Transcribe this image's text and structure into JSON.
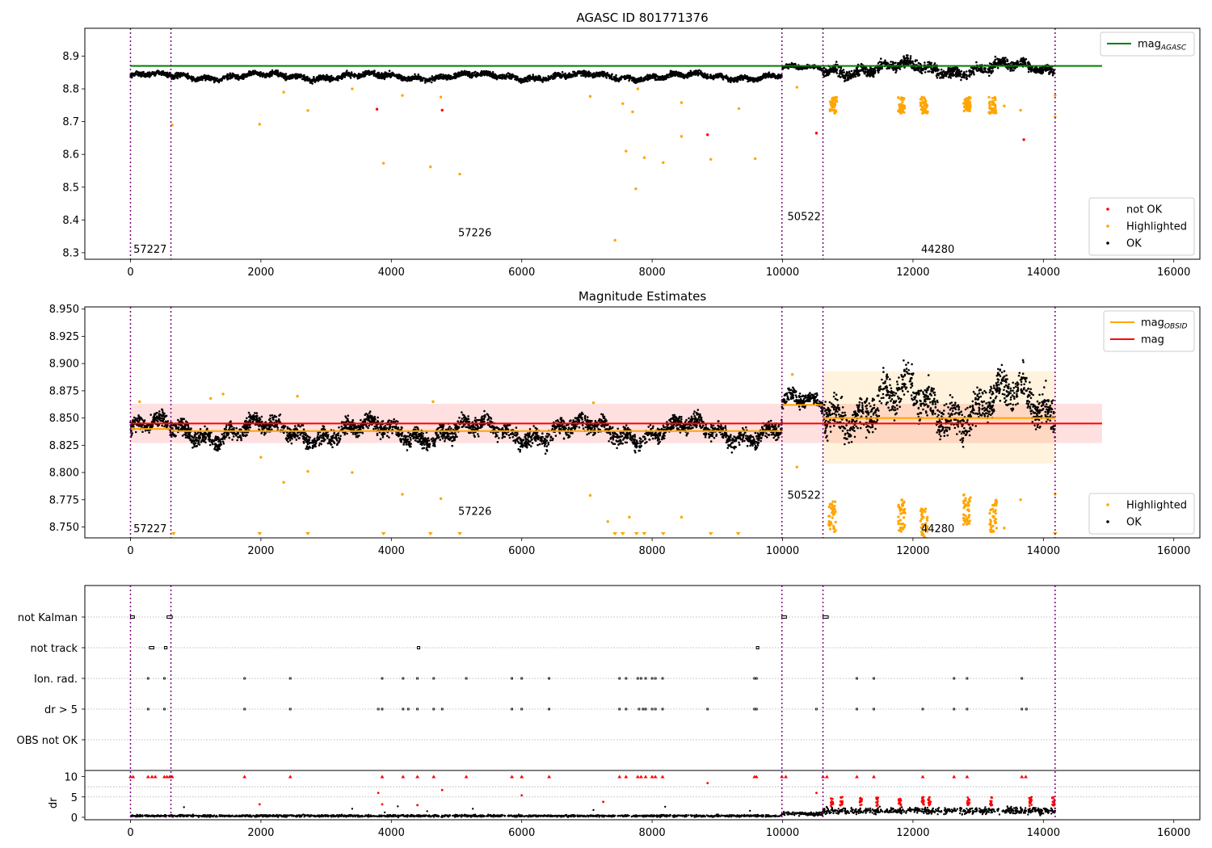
{
  "chart_data": [
    {
      "type": "scatter",
      "title": "AGASC ID 801771376",
      "xlabel": "",
      "ylabel": "",
      "xlim": [
        -700,
        16400
      ],
      "ylim": [
        8.28,
        8.985
      ],
      "xticks": [
        0,
        2000,
        4000,
        6000,
        8000,
        10000,
        12000,
        14000,
        16000
      ],
      "yticks": [
        8.3,
        8.4,
        8.5,
        8.6,
        8.7,
        8.8,
        8.9
      ],
      "ytick_decimals": 1,
      "grid": false,
      "obs_boundaries": [
        0,
        620,
        9990,
        10620,
        14180
      ],
      "obs_labels": [
        {
          "text": "57227",
          "x": 20,
          "y": 8.31
        },
        {
          "text": "57226",
          "x": 5000,
          "y": 8.36
        },
        {
          "text": "50522",
          "x": 10050,
          "y": 8.41
        },
        {
          "text": "44280",
          "x": 12100,
          "y": 8.31
        }
      ],
      "hlines": [
        {
          "name": "mag_AGASC",
          "y": 8.87,
          "x_range": [
            0,
            14900
          ],
          "color": "#008000"
        }
      ],
      "series": [
        {
          "name": "not OK",
          "color": "#ff0000",
          "values": [
            [
              3780,
              8.738
            ],
            [
              4780,
              8.735
            ],
            [
              8850,
              8.66
            ],
            [
              10520,
              8.665
            ],
            [
              13700,
              8.645
            ]
          ]
        },
        {
          "name": "Highlighted",
          "color": "#ffa500",
          "values": [
            [
              640,
              8.69
            ],
            [
              1980,
              8.692
            ],
            [
              2350,
              8.79
            ],
            [
              2720,
              8.734
            ],
            [
              3400,
              8.8
            ],
            [
              3880,
              8.573
            ],
            [
              4170,
              8.78
            ],
            [
              4600,
              8.562
            ],
            [
              4760,
              8.775
            ],
            [
              5050,
              8.54
            ],
            [
              7050,
              8.777
            ],
            [
              7430,
              8.338
            ],
            [
              7550,
              8.755
            ],
            [
              7600,
              8.61
            ],
            [
              7750,
              8.495
            ],
            [
              7880,
              8.59
            ],
            [
              8170,
              8.575
            ],
            [
              8450,
              8.655
            ],
            [
              8450,
              8.758
            ],
            [
              8900,
              8.585
            ],
            [
              9330,
              8.74
            ],
            [
              9580,
              8.587
            ],
            [
              7700,
              8.73
            ],
            [
              7780,
              8.8
            ],
            [
              10220,
              8.805
            ],
            [
              13400,
              8.748
            ],
            [
              13650,
              8.735
            ],
            [
              14180,
              8.78
            ],
            [
              14180,
              8.715
            ]
          ]
        }
      ],
      "ok_segments": [
        {
          "x": [
            0,
            620
          ],
          "mean": 8.84,
          "spread": 0.02
        },
        {
          "x": [
            620,
            9990
          ],
          "mean": 8.838,
          "spread": 0.022
        },
        {
          "x": [
            9990,
            10620
          ],
          "mean": 8.862,
          "spread": 0.018
        },
        {
          "x": [
            10620,
            14180
          ],
          "mean": 8.862,
          "spread": 0.045
        }
      ],
      "legends": [
        {
          "position": "top-right",
          "items": [
            {
              "label": "mag",
              "sub": "AGASC",
              "kind": "line",
              "color": "#008000"
            }
          ]
        },
        {
          "position": "lower-right",
          "items": [
            {
              "label": "not OK",
              "kind": "dot",
              "color": "#ff0000"
            },
            {
              "label": "Highlighted",
              "kind": "dot",
              "color": "#ffa500"
            },
            {
              "label": "OK",
              "kind": "dot",
              "color": "#000000"
            }
          ]
        }
      ]
    },
    {
      "type": "scatter",
      "title": "Magnitude Estimates",
      "xlabel": "",
      "ylabel": "",
      "xlim": [
        -700,
        16400
      ],
      "ylim": [
        8.74,
        8.952
      ],
      "xticks": [
        0,
        2000,
        4000,
        6000,
        8000,
        10000,
        12000,
        14000,
        16000
      ],
      "yticks": [
        8.75,
        8.775,
        8.8,
        8.825,
        8.85,
        8.875,
        8.9,
        8.925,
        8.95
      ],
      "ytick_decimals": 3,
      "grid": false,
      "obs_boundaries": [
        0,
        620,
        9990,
        10620,
        14180
      ],
      "obs_labels": [
        {
          "text": "57227",
          "x": 20,
          "y": 8.748
        },
        {
          "text": "57226",
          "x": 5000,
          "y": 8.764
        },
        {
          "text": "50522",
          "x": 10050,
          "y": 8.779
        },
        {
          "text": "44280",
          "x": 12100,
          "y": 8.748
        }
      ],
      "bands": [
        {
          "x_range": [
            0,
            14900
          ],
          "y_range": [
            8.827,
            8.863
          ],
          "color": "rgba(255,0,0,0.12)"
        },
        {
          "x_range": [
            10620,
            14180
          ],
          "y_range": [
            8.808,
            8.893
          ],
          "color": "rgba(255,165,0,0.13)"
        }
      ],
      "hlines": [
        {
          "name": "mag",
          "y": 8.845,
          "x_range": [
            0,
            14900
          ],
          "color": "#ff0000"
        },
        {
          "name": "mag_OBSID",
          "y": 8.84,
          "x_range": [
            0,
            620
          ],
          "color": "#ffa500"
        },
        {
          "name": "mag_OBSID",
          "y": 8.838,
          "x_range": [
            620,
            9990
          ],
          "color": "#ffa500"
        },
        {
          "name": "mag_OBSID",
          "y": 8.862,
          "x_range": [
            9990,
            10620
          ],
          "color": "#ffa500"
        },
        {
          "name": "mag_OBSID",
          "y": 8.85,
          "x_range": [
            10620,
            14180
          ],
          "color": "#ffa500"
        }
      ],
      "series": [
        {
          "name": "Highlighted",
          "color": "#ffa500",
          "values": [
            [
              140,
              8.865
            ],
            [
              1230,
              8.868
            ],
            [
              1420,
              8.872
            ],
            [
              2000,
              8.814
            ],
            [
              2350,
              8.791
            ],
            [
              2560,
              8.87
            ],
            [
              2720,
              8.801
            ],
            [
              3400,
              8.8
            ],
            [
              4170,
              8.78
            ],
            [
              4760,
              8.776
            ],
            [
              4640,
              8.865
            ],
            [
              7050,
              8.779
            ],
            [
              7100,
              8.864
            ],
            [
              7320,
              8.755
            ],
            [
              7650,
              8.759
            ],
            [
              8450,
              8.759
            ],
            [
              10220,
              8.805
            ],
            [
              13400,
              8.749
            ],
            [
              13650,
              8.775
            ],
            [
              14180,
              8.78
            ],
            [
              10150,
              8.89
            ]
          ]
        },
        {
          "name": "Highlighted-below",
          "color": "#ffa500",
          "values": [
            [
              660,
              8.744
            ],
            [
              1980,
              8.744
            ],
            [
              2720,
              8.744
            ],
            [
              3880,
              8.744
            ],
            [
              4600,
              8.744
            ],
            [
              5050,
              8.744
            ],
            [
              7430,
              8.744
            ],
            [
              7550,
              8.744
            ],
            [
              7760,
              8.744
            ],
            [
              7880,
              8.744
            ],
            [
              8170,
              8.744
            ],
            [
              8900,
              8.744
            ],
            [
              9320,
              8.744
            ],
            [
              14180,
              8.744
            ]
          ]
        },
        {
          "name": "Highlighted-clusters",
          "color": "#ffa500",
          "values": [
            [
              10760,
              8.76
            ],
            [
              11830,
              8.76
            ],
            [
              12170,
              8.752
            ],
            [
              12830,
              8.765
            ],
            [
              13230,
              8.76
            ]
          ]
        }
      ],
      "ok_segments": [
        {
          "x": [
            0,
            620
          ],
          "mean": 8.84,
          "spread": 0.02
        },
        {
          "x": [
            620,
            9990
          ],
          "mean": 8.838,
          "spread": 0.022
        },
        {
          "x": [
            9990,
            10620
          ],
          "mean": 8.862,
          "spread": 0.018
        },
        {
          "x": [
            10620,
            14180
          ],
          "mean": 8.862,
          "spread": 0.045
        }
      ],
      "legends": [
        {
          "position": "top-right",
          "items": [
            {
              "label": "mag",
              "sub": "OBSID",
              "kind": "line",
              "color": "#ffa500"
            },
            {
              "label": "mag",
              "kind": "line",
              "color": "#ff0000"
            }
          ]
        },
        {
          "position": "lower-right",
          "items": [
            {
              "label": "Highlighted",
              "kind": "dot",
              "color": "#ffa500"
            },
            {
              "label": "OK",
              "kind": "dot",
              "color": "#000000"
            }
          ]
        }
      ]
    },
    {
      "type": "scatter",
      "title": "",
      "xlim": [
        -700,
        16400
      ],
      "xticks": [
        0,
        2000,
        4000,
        6000,
        8000,
        10000,
        12000,
        14000,
        16000
      ],
      "obs_boundaries": [
        0,
        620,
        9990,
        10620,
        14180
      ],
      "flag_rows": [
        "not Kalman",
        "not track",
        "Ion. rad.",
        "dr > 5",
        "OBS not OK"
      ],
      "flag_points": {
        "not Kalman": [
          [
            0,
            60
          ],
          [
            560,
            640
          ],
          [
            9990,
            10060
          ],
          [
            10620,
            10700
          ]
        ],
        "not track": [
          [
            290,
            360
          ],
          [
            520,
            560
          ],
          [
            4400,
            4400
          ],
          [
            9600,
            9600
          ]
        ],
        "Ion. rad.": [
          270,
          520,
          1750,
          2450,
          3860,
          4180,
          4400,
          4650,
          5150,
          5850,
          6000,
          6420,
          7500,
          7600,
          7780,
          7830,
          7900,
          8000,
          8050,
          8160,
          9570,
          9600,
          11140,
          11400,
          12630,
          12830,
          13670
        ],
        "dr > 5": [
          270,
          520,
          1750,
          2450,
          3800,
          3860,
          4180,
          4260,
          4400,
          4650,
          4780,
          5850,
          6000,
          6420,
          7500,
          7600,
          7800,
          7860,
          7900,
          8000,
          8050,
          8160,
          8850,
          9570,
          9600,
          10520,
          11140,
          11400,
          12150,
          12630,
          12830,
          13670,
          13740
        ],
        "OBS not OK": []
      },
      "dr_panel": {
        "ylabel": "dr",
        "yticks": [
          0,
          5,
          10
        ],
        "ylim": [
          -0.6,
          11.5
        ],
        "clip_value": 10,
        "red_clipped": [
          0,
          40,
          270,
          330,
          380,
          520,
          560,
          600,
          640,
          1750,
          2450,
          3860,
          4180,
          4400,
          4650,
          5150,
          5850,
          6000,
          6420,
          7500,
          7600,
          7780,
          7830,
          7900,
          8000,
          8050,
          8160,
          9570,
          9600,
          9990,
          10050,
          10620,
          10680,
          11140,
          11400,
          12150,
          12630,
          12830,
          13670,
          13730
        ],
        "red_points": [
          [
            3800,
            6.0
          ],
          [
            4780,
            6.7
          ],
          [
            3860,
            3.2
          ],
          [
            4400,
            3.0
          ],
          [
            7250,
            3.8
          ],
          [
            8850,
            8.4
          ],
          [
            10520,
            6.0
          ],
          [
            6000,
            5.4
          ],
          [
            1980,
            3.2
          ]
        ],
        "red_clusters": [
          10760,
          10900,
          11200,
          11450,
          11800,
          12150,
          12250,
          12850,
          13200,
          13800,
          14150
        ],
        "ok_segments": [
          {
            "x": [
              0,
              9990
            ],
            "mean": 0.35,
            "spread": 0.4
          },
          {
            "x": [
              9990,
              10620
            ],
            "mean": 0.9,
            "spread": 0.8
          },
          {
            "x": [
              10620,
              14180
            ],
            "mean": 1.6,
            "spread": 1.3
          }
        ],
        "ok_outliers": [
          [
            820,
            2.5
          ],
          [
            3400,
            2.1
          ],
          [
            4100,
            2.7
          ],
          [
            5250,
            2.1
          ],
          [
            7100,
            1.8
          ],
          [
            8200,
            2.6
          ],
          [
            9500,
            1.6
          ],
          [
            3900,
            1.2
          ],
          [
            4550,
            1.5
          ]
        ]
      }
    }
  ]
}
